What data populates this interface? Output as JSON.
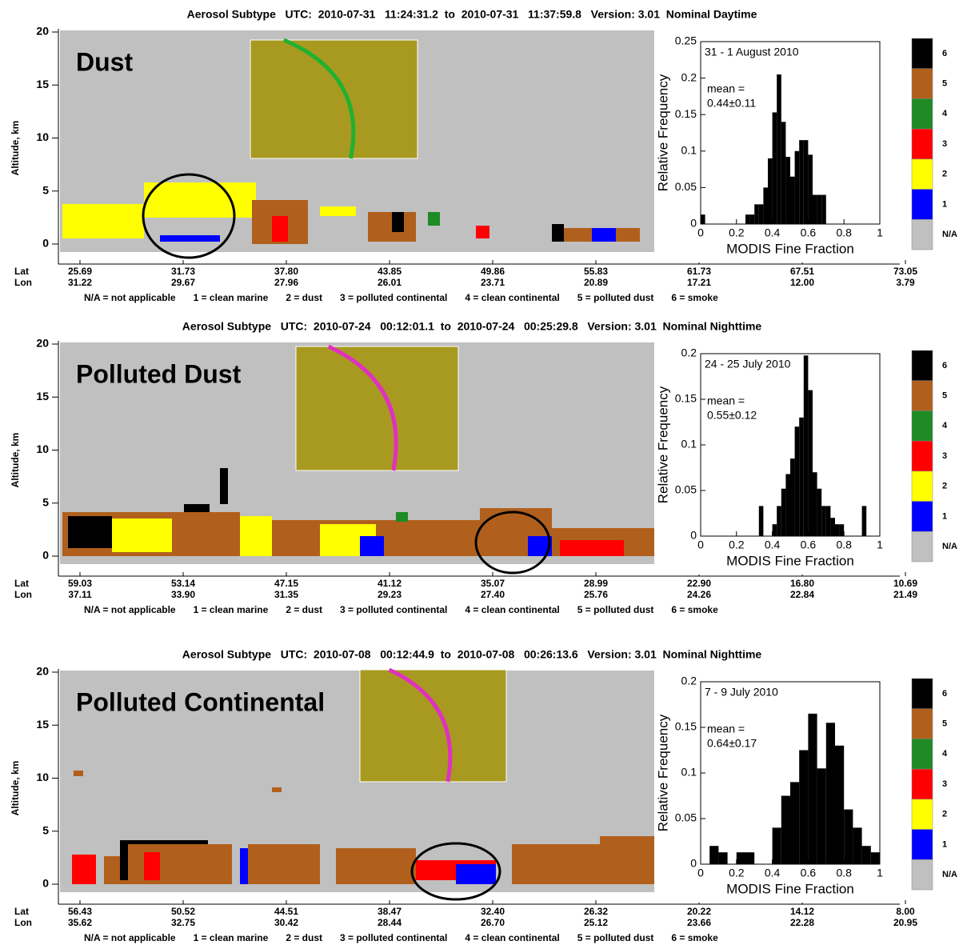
{
  "chart_data": [
    {
      "type": "curtain",
      "title": "Aerosol Subtype   UTC:  2010-07-31   11:24:31.2  to  2010-07-31   11:37:59.8   Version: 3.01  Nominal Daytime",
      "annotation": "Dust",
      "annotation_color": "#ffff00",
      "ylabel": "Altitude, km",
      "ylim": [
        0,
        20
      ],
      "yticks": [
        0,
        5,
        10,
        15,
        20
      ],
      "lat_label": "Lat",
      "lon_label": "Lon",
      "lat": [
        25.69,
        31.73,
        {
          "value": 37.8,
          "label": "37.80"
        },
        43.85,
        49.86,
        55.83,
        61.73,
        67.51,
        73.05
      ],
      "lon": [
        31.22,
        29.67,
        27.96,
        26.01,
        23.71,
        20.89,
        17.21,
        {
          "value": 12,
          "label": "12.00"
        },
        3.79
      ],
      "legend": [
        "N/A = not applicable",
        "1 = clean marine",
        "2 = dust",
        "3 = polluted continental",
        "4 = clean continental",
        "5 = polluted dust",
        "6 = smoke"
      ],
      "colorbar": {
        "labels": [
          "6",
          "5",
          "4",
          "3",
          "2",
          "1",
          "N/A"
        ],
        "colors": [
          "#000000",
          "#b0601c",
          "#1e8b24",
          "#ff0000",
          "#ffff00",
          "#0000ff",
          "#c0c0c0"
        ]
      }
    },
    {
      "type": "histogram",
      "title": "31 - 1 August 2010",
      "annotation": [
        "mean =",
        "0.44±0.11"
      ],
      "xlabel": "MODIS Fine Fraction",
      "ylabel": "Relative Frequency",
      "xlim": [
        0,
        1
      ],
      "ylim": [
        0,
        0.25
      ],
      "xticks": [
        0,
        0.2,
        0.4,
        0.6,
        0.8,
        1
      ],
      "yticks": [
        0,
        0.05,
        0.1,
        0.15,
        0.2,
        0.25
      ],
      "bins": [
        0,
        0.025,
        0.05,
        0.075,
        0.1,
        0.125,
        0.15,
        0.175,
        0.2,
        0.225,
        0.25,
        0.275,
        0.3,
        0.325,
        0.35,
        0.375,
        0.4,
        0.425,
        0.45,
        0.475,
        0.5,
        0.525,
        0.55,
        0.575,
        0.6,
        0.625,
        0.65,
        0.675,
        0.7
      ],
      "values": [
        0.013,
        0,
        0,
        0,
        0,
        0,
        0,
        0,
        0,
        0,
        0.013,
        0.013,
        0.027,
        0.027,
        0.05,
        0.09,
        0.153,
        0.205,
        0.14,
        0.092,
        0.065,
        0.1,
        0.115,
        0.115,
        0.095,
        0.04,
        0.04,
        0.04
      ],
      "color": "#000000"
    },
    {
      "type": "curtain",
      "title": "Aerosol Subtype   UTC:  2010-07-24   00:12:01.1  to  2010-07-24   00:25:29.8   Version: 3.01  Nominal Nighttime",
      "annotation": "Polluted Dust",
      "annotation_color": "#b0601c",
      "ylabel": "Altitude, km",
      "ylim": [
        0,
        20
      ],
      "yticks": [
        0,
        5,
        10,
        15,
        20
      ],
      "lat_label": "Lat",
      "lon_label": "Lon",
      "lat": [
        59.03,
        53.14,
        47.15,
        41.12,
        35.07,
        28.99,
        {
          "value": 22.9,
          "label": "22.90"
        },
        {
          "value": 16.8,
          "label": "16.80"
        },
        10.69
      ],
      "lon": [
        37.11,
        {
          "value": 33.9,
          "label": "33.90"
        },
        31.35,
        29.23,
        {
          "value": 27.4,
          "label": "27.40"
        },
        25.76,
        24.26,
        22.84,
        21.49
      ],
      "legend": [
        "N/A = not applicable",
        "1 = clean marine",
        "2 = dust",
        "3 = polluted continental",
        "4 = clean continental",
        "5 = polluted dust",
        "6 = smoke"
      ],
      "colorbar": {
        "labels": [
          "6",
          "5",
          "4",
          "3",
          "2",
          "1",
          "N/A"
        ],
        "colors": [
          "#000000",
          "#b0601c",
          "#1e8b24",
          "#ff0000",
          "#ffff00",
          "#0000ff",
          "#c0c0c0"
        ]
      }
    },
    {
      "type": "histogram",
      "title": "24 - 25 July 2010",
      "annotation": [
        "mean =",
        "0.55±0.12"
      ],
      "xlabel": "MODIS Fine Fraction",
      "ylabel": "Relative Frequency",
      "xlim": [
        0,
        1
      ],
      "ylim": [
        0,
        0.2
      ],
      "xticks": [
        0,
        0.2,
        0.4,
        0.6,
        0.8,
        1
      ],
      "yticks": [
        0,
        0.05,
        0.1,
        0.15,
        0.2
      ],
      "bins": [
        0.3,
        0.325,
        0.35,
        0.375,
        0.4,
        0.425,
        0.45,
        0.475,
        0.5,
        0.525,
        0.55,
        0.575,
        0.6,
        0.625,
        0.65,
        0.675,
        0.7,
        0.725,
        0.75,
        0.775,
        0.8,
        0.825,
        0.85,
        0.875,
        0.9,
        0.925
      ],
      "values": [
        0,
        0.033,
        0,
        0,
        0.013,
        0.033,
        0.052,
        0.068,
        0.085,
        0.12,
        0.13,
        0.198,
        0.16,
        0.07,
        0.052,
        0.033,
        0.033,
        0.02,
        0.013,
        0.013,
        0,
        0,
        0,
        0,
        0.033
      ],
      "color": "#000000"
    },
    {
      "type": "curtain",
      "title": "Aerosol Subtype   UTC:  2010-07-08   00:12:44.9  to  2010-07-08   00:26:13.6   Version: 3.01  Nominal Nighttime",
      "annotation": "Polluted Continental",
      "annotation_color": "#ff0000",
      "ylabel": "Altitude, km",
      "ylim": [
        0,
        20
      ],
      "yticks": [
        0,
        5,
        10,
        15,
        20
      ],
      "lat_label": "Lat",
      "lon_label": "Lon",
      "lat": [
        56.43,
        50.52,
        44.51,
        38.47,
        {
          "value": 32.4,
          "label": "32.40"
        },
        26.32,
        20.22,
        14.12,
        {
          "value": 8,
          "label": "8.00"
        }
      ],
      "lon": [
        35.62,
        32.75,
        30.42,
        28.44,
        {
          "value": 26.7,
          "label": "26.70"
        },
        25.12,
        23.66,
        22.28,
        20.95
      ],
      "legend": [
        "N/A = not applicable",
        "1 = clean marine",
        "2 = dust",
        "3 = polluted continental",
        "4 = clean continental",
        "5 = polluted dust",
        "6 = smoke"
      ],
      "colorbar": {
        "labels": [
          "6",
          "5",
          "4",
          "3",
          "2",
          "1",
          "N/A"
        ],
        "colors": [
          "#000000",
          "#b0601c",
          "#1e8b24",
          "#ff0000",
          "#ffff00",
          "#0000ff",
          "#c0c0c0"
        ]
      }
    },
    {
      "type": "histogram",
      "title": "7 - 9 July 2010",
      "annotation": [
        "mean =",
        "0.64±0.17"
      ],
      "xlabel": "MODIS Fine Fraction",
      "ylabel": "Relative Frequency",
      "xlim": [
        0,
        1
      ],
      "ylim": [
        0,
        0.2
      ],
      "xticks": [
        0,
        0.2,
        0.4,
        0.6,
        0.8,
        1
      ],
      "yticks": [
        0,
        0.05,
        0.1,
        0.15,
        0.2
      ],
      "bins": [
        0.05,
        0.1,
        0.15,
        0.2,
        0.25,
        0.3,
        0.35,
        0.4,
        0.45,
        0.5,
        0.55,
        0.6,
        0.65,
        0.7,
        0.75,
        0.8,
        0.85,
        0.9,
        0.95,
        1
      ],
      "values": [
        0.02,
        0.013,
        0,
        0.013,
        0.013,
        0,
        0,
        0.04,
        0.075,
        0.09,
        0.125,
        0.165,
        0.105,
        0.155,
        0.13,
        0.06,
        0.04,
        0.02,
        0.013
      ],
      "color": "#000000"
    }
  ]
}
